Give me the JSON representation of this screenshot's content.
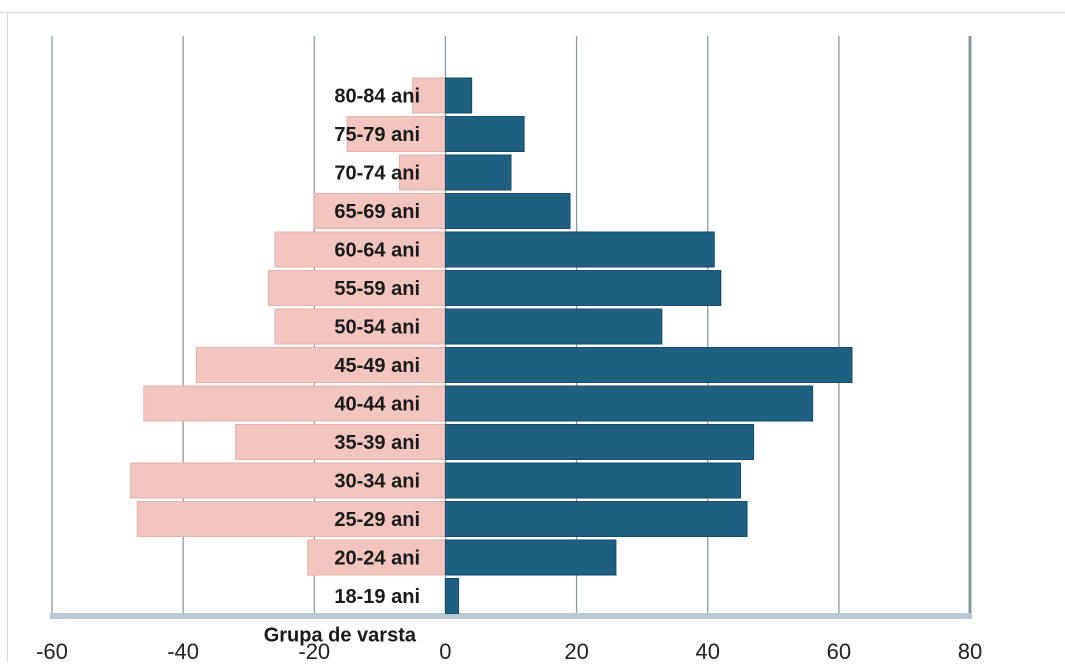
{
  "chart_data": {
    "type": "bar",
    "orientation": "horizontal",
    "categories": [
      "18-19 ani",
      "20-24 ani",
      "25-29 ani",
      "30-34 ani",
      "35-39 ani",
      "40-44 ani",
      "45-49 ani",
      "50-54 ani",
      "55-59 ani",
      "60-64 ani",
      "65-69 ani",
      "70-74 ani",
      "75-79 ani",
      "80-84 ani"
    ],
    "extra_category_label": "Grupa de varsta",
    "series": [
      {
        "color": "#f2c6bf",
        "values": [
          0,
          -21,
          -47,
          -48,
          -32,
          -46,
          -38,
          -26,
          -27,
          -26,
          -20,
          -7,
          -15,
          -5
        ]
      },
      {
        "color": "#1f6082",
        "values": [
          2,
          26,
          46,
          45,
          47,
          56,
          62,
          33,
          42,
          41,
          19,
          10,
          12,
          4
        ]
      }
    ],
    "xlim": [
      -60,
      80
    ],
    "xticks": [
      -60,
      -40,
      -20,
      0,
      20,
      40,
      60,
      80
    ],
    "xtick_labels": [
      "-60",
      "-40",
      "-20",
      "0",
      "20",
      "40",
      "60",
      "80"
    ],
    "grid": true,
    "legend": "none",
    "title": "",
    "xlabel": "",
    "ylabel": ""
  }
}
